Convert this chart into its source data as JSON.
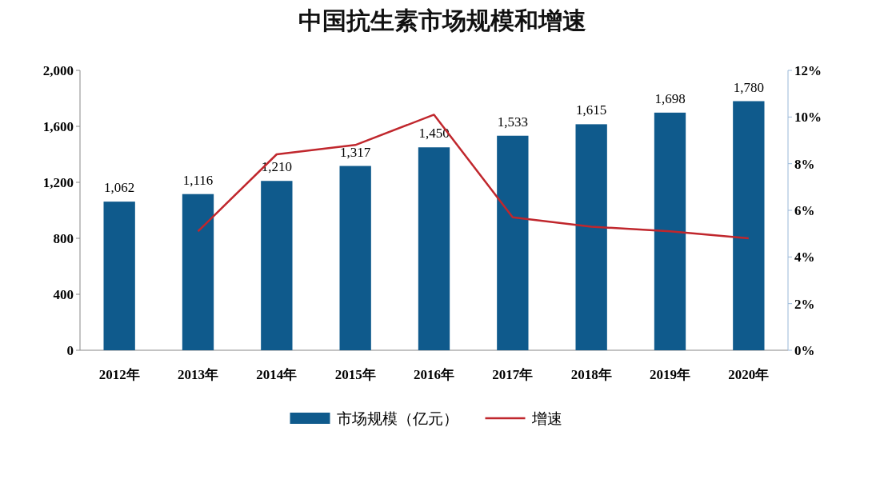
{
  "chart_data": {
    "type": "bar",
    "title": "中国抗生素市场规模和增速",
    "categories": [
      "2012年",
      "2013年",
      "2014年",
      "2015年",
      "2016年",
      "2017年",
      "2018年",
      "2019年",
      "2020年"
    ],
    "series": [
      {
        "name": "市场规模（亿元）",
        "color": "#0f5a8c",
        "values": [
          1062,
          1116,
          1210,
          1317,
          1450,
          1533,
          1615,
          1698,
          1780
        ],
        "value_labels": [
          "1,062",
          "1,116",
          "1,210",
          "1,317",
          "1,450",
          "1,533",
          "1,615",
          "1,698",
          "1,780"
        ]
      },
      {
        "name": "增速",
        "type": "line",
        "axis": "y2",
        "color": "#c0272d",
        "values": [
          null,
          5.1,
          8.4,
          8.8,
          10.1,
          5.7,
          5.3,
          5.1,
          4.8
        ]
      }
    ],
    "ylim": [
      0,
      2000
    ],
    "yticks": [
      0,
      400,
      800,
      {
        "value": 1200,
        "label": "1,200"
      },
      {
        "value": 1600,
        "label": "1,600"
      },
      {
        "value": 2000,
        "label": "2,000"
      }
    ],
    "y2lim": [
      0,
      12
    ],
    "y2ticks": [
      {
        "value": 0,
        "label": "0%"
      },
      {
        "value": 2,
        "label": "2%"
      },
      {
        "value": 4,
        "label": "4%"
      },
      {
        "value": 6,
        "label": "6%"
      },
      {
        "value": 8,
        "label": "8%"
      },
      {
        "value": 10,
        "label": "10%"
      },
      {
        "value": 12,
        "label": "12%"
      }
    ],
    "legend": "bottom",
    "grid": false
  }
}
